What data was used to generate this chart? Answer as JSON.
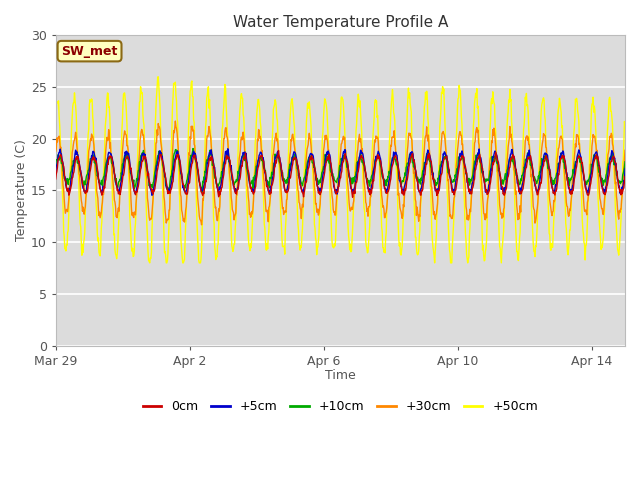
{
  "title": "Water Temperature Profile A",
  "xlabel": "Time",
  "ylabel": "Temperature (C)",
  "ylim": [
    0,
    30
  ],
  "yticks": [
    0,
    5,
    10,
    15,
    20,
    25,
    30
  ],
  "plot_bg_color": "#dcdcdc",
  "fig_bg_color": "#ffffff",
  "legend_items": [
    "0cm",
    "+5cm",
    "+10cm",
    "+30cm",
    "+50cm"
  ],
  "legend_colors": [
    "#cc0000",
    "#0000cc",
    "#00aa00",
    "#ff8800",
    "#ffff00"
  ],
  "annotation_text": "SW_met",
  "annotation_fg": "#8b0000",
  "annotation_bg": "#ffffc0",
  "annotation_edge": "#8b6914",
  "xtick_labels": [
    "Mar 29",
    "Apr 2",
    "Apr 6",
    "Apr 10",
    "Apr 14"
  ],
  "xtick_positions": [
    0,
    4,
    8,
    12,
    16
  ],
  "xlim": [
    0,
    17
  ]
}
